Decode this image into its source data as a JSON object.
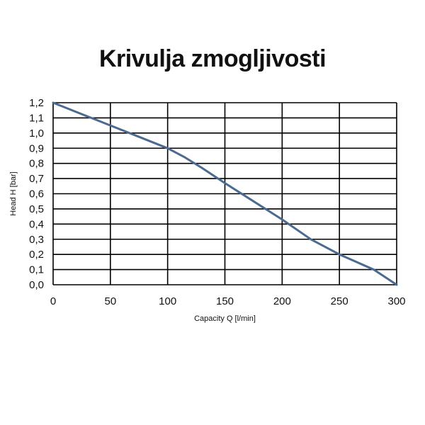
{
  "chart_data": {
    "type": "line",
    "title": "Krivulja zmogljivosti",
    "xlabel": "Capacity Q [l/min]",
    "ylabel": "Head H [bar]",
    "xlim": [
      0,
      300
    ],
    "ylim": [
      0,
      1.2
    ],
    "x_ticks": [
      "0",
      "50",
      "100",
      "150",
      "200",
      "250",
      "300"
    ],
    "y_ticks": [
      "0,0",
      "0,1",
      "0,2",
      "0,3",
      "0,4",
      "0,5",
      "0,6",
      "0,7",
      "0,8",
      "0,9",
      "1,0",
      "1,1",
      "1,2"
    ],
    "grid": true,
    "series": [
      {
        "color": "#4a6a90",
        "x": [
          0,
          25,
          50,
          75,
          100,
          115,
          130,
          150,
          175,
          200,
          225,
          250,
          265,
          280,
          290,
          300
        ],
        "y": [
          1.2,
          1.125,
          1.05,
          0.975,
          0.9,
          0.84,
          0.77,
          0.67,
          0.55,
          0.43,
          0.3,
          0.2,
          0.15,
          0.1,
          0.05,
          0.0
        ]
      }
    ]
  }
}
